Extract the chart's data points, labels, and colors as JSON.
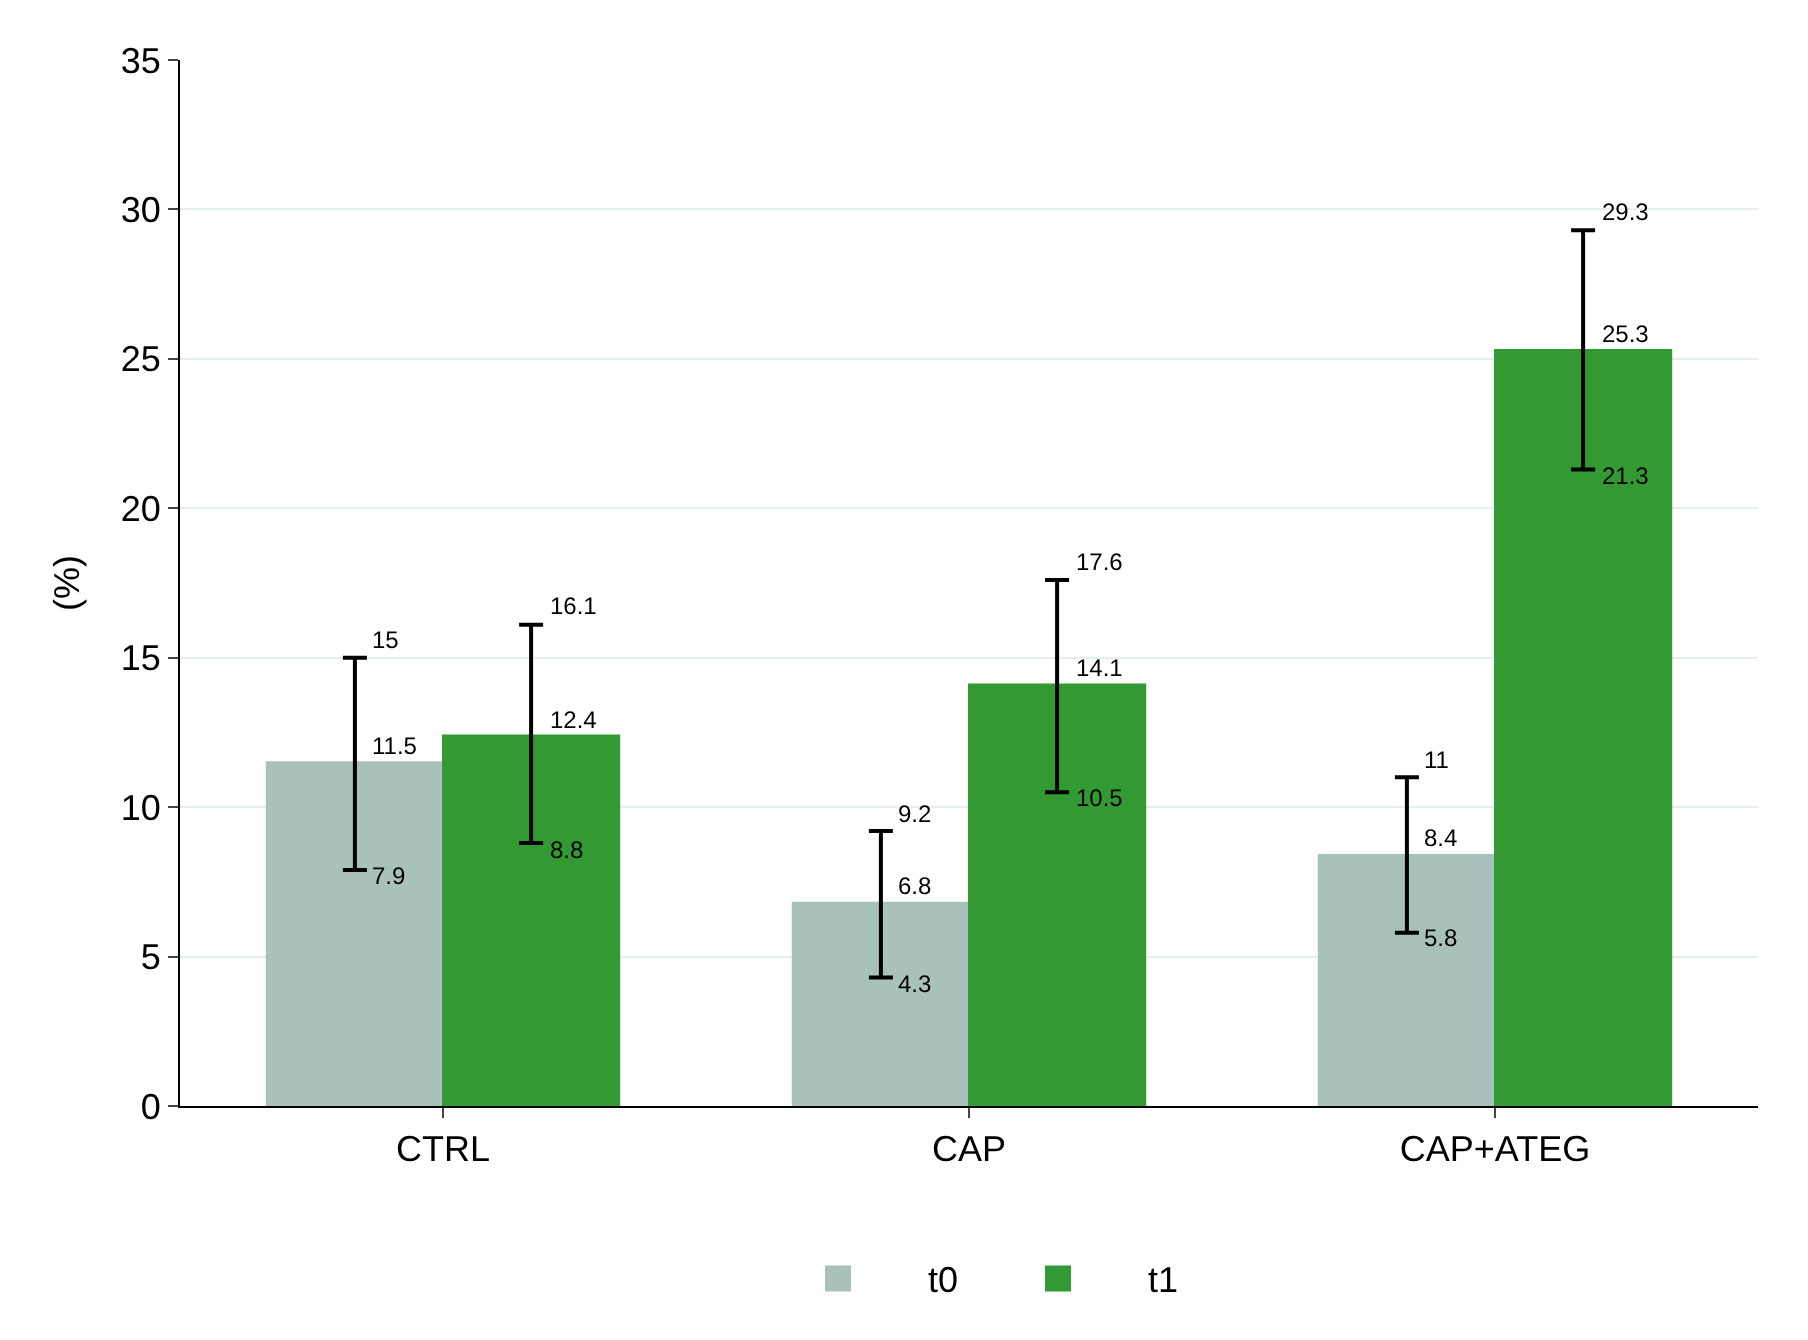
{
  "chart_data": {
    "type": "bar",
    "ylabel": "(%)",
    "categories": [
      "CTRL",
      "CAP",
      "CAP+ATEG"
    ],
    "series": [
      {
        "name": "t0",
        "color": "#a8c1bb",
        "values": [
          11.5,
          6.8,
          8.4
        ],
        "errors": [
          [
            7.9,
            15
          ],
          [
            4.3,
            9.2
          ],
          [
            5.8,
            11
          ]
        ]
      },
      {
        "name": "t1",
        "color": "#339933",
        "values": [
          12.4,
          14.1,
          25.3
        ],
        "errors": [
          [
            8.8,
            16.1
          ],
          [
            10.5,
            17.6
          ],
          [
            21.3,
            29.3
          ]
        ]
      }
    ],
    "ylim": [
      0,
      35
    ],
    "yticks": [
      0,
      5,
      10,
      15,
      20,
      25,
      30,
      35
    ],
    "grid": "y",
    "legend": "bottom",
    "data_labels": true,
    "annotations": [
      "7.9",
      "15",
      "4.3",
      "9.2",
      "5.8",
      "11",
      "8.8",
      "16.1",
      "10.5",
      "17.6",
      "21.3",
      "29.3"
    ]
  }
}
